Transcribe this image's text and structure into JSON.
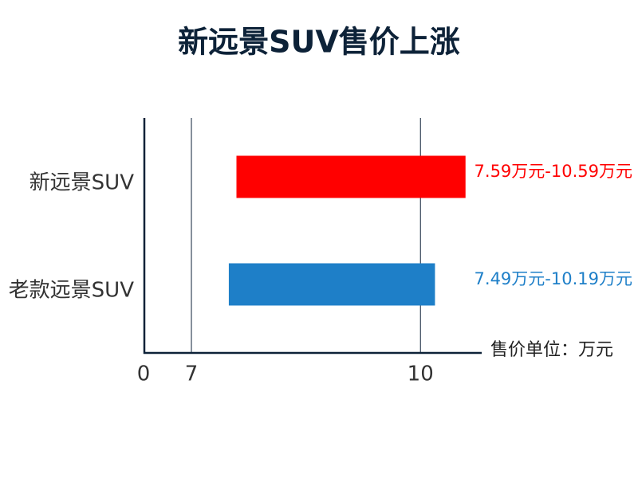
{
  "chart_data": {
    "type": "range-bar",
    "title": "新远景SUV售价上涨",
    "categories": [
      "新远景SUV",
      "老款远景SUV"
    ],
    "low": [
      7.59,
      7.49
    ],
    "high": [
      10.59,
      10.19
    ],
    "value_labels": [
      "7.59万元-10.59万元",
      "7.49万元-10.19万元"
    ],
    "colors": [
      "#ff0000",
      "#1e7fc8"
    ],
    "x_label": "售价单位：万元",
    "xlim": [
      0,
      10.76
    ],
    "xticks": [
      0,
      7,
      10
    ],
    "grid": true
  }
}
